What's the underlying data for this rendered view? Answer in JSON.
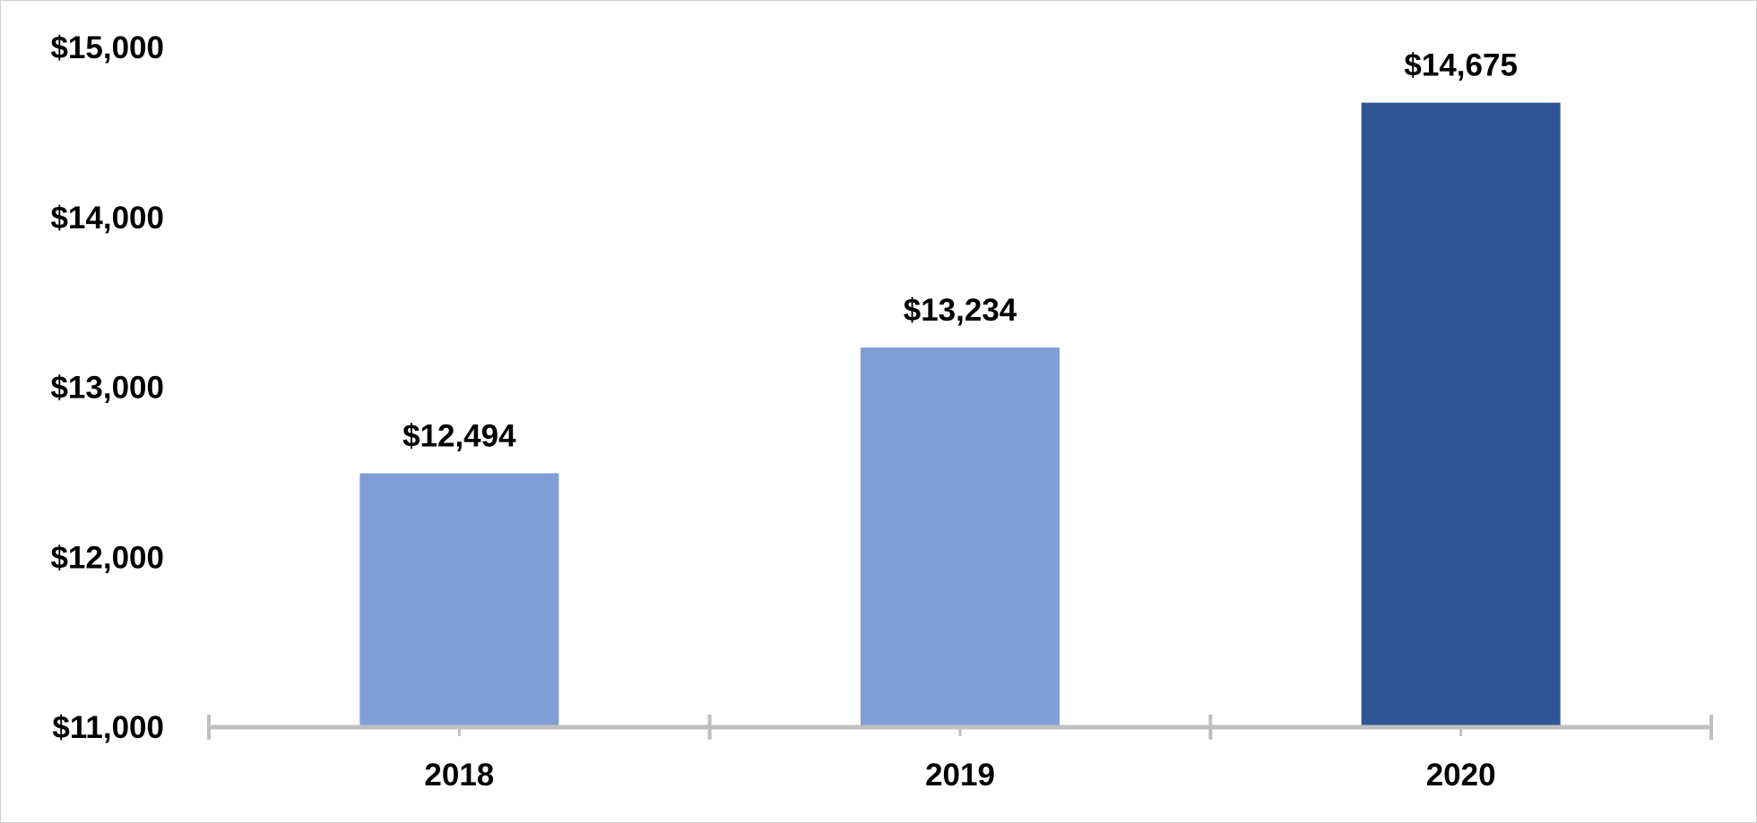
{
  "chart_data": {
    "type": "bar",
    "title": "",
    "xlabel": "",
    "ylabel": "",
    "categories": [
      "2018",
      "2019",
      "2020"
    ],
    "values": [
      12494,
      13234,
      14675
    ],
    "data_labels": [
      "$12,494",
      "$13,234",
      "$14,675"
    ],
    "ylim": [
      11000,
      15000
    ],
    "y_ticks": [
      15000,
      14000,
      13000,
      12000,
      11000
    ],
    "y_tick_labels": [
      "$15,000",
      "$14,000",
      "$13,000",
      "$12,000",
      "$11,000"
    ],
    "grid": false,
    "legend": "none",
    "colors": {
      "bar_default": "#7f9fd6",
      "bar_highlight": "#2f5597",
      "axis": "#bfbfbf"
    },
    "highlight_category": "2020"
  }
}
